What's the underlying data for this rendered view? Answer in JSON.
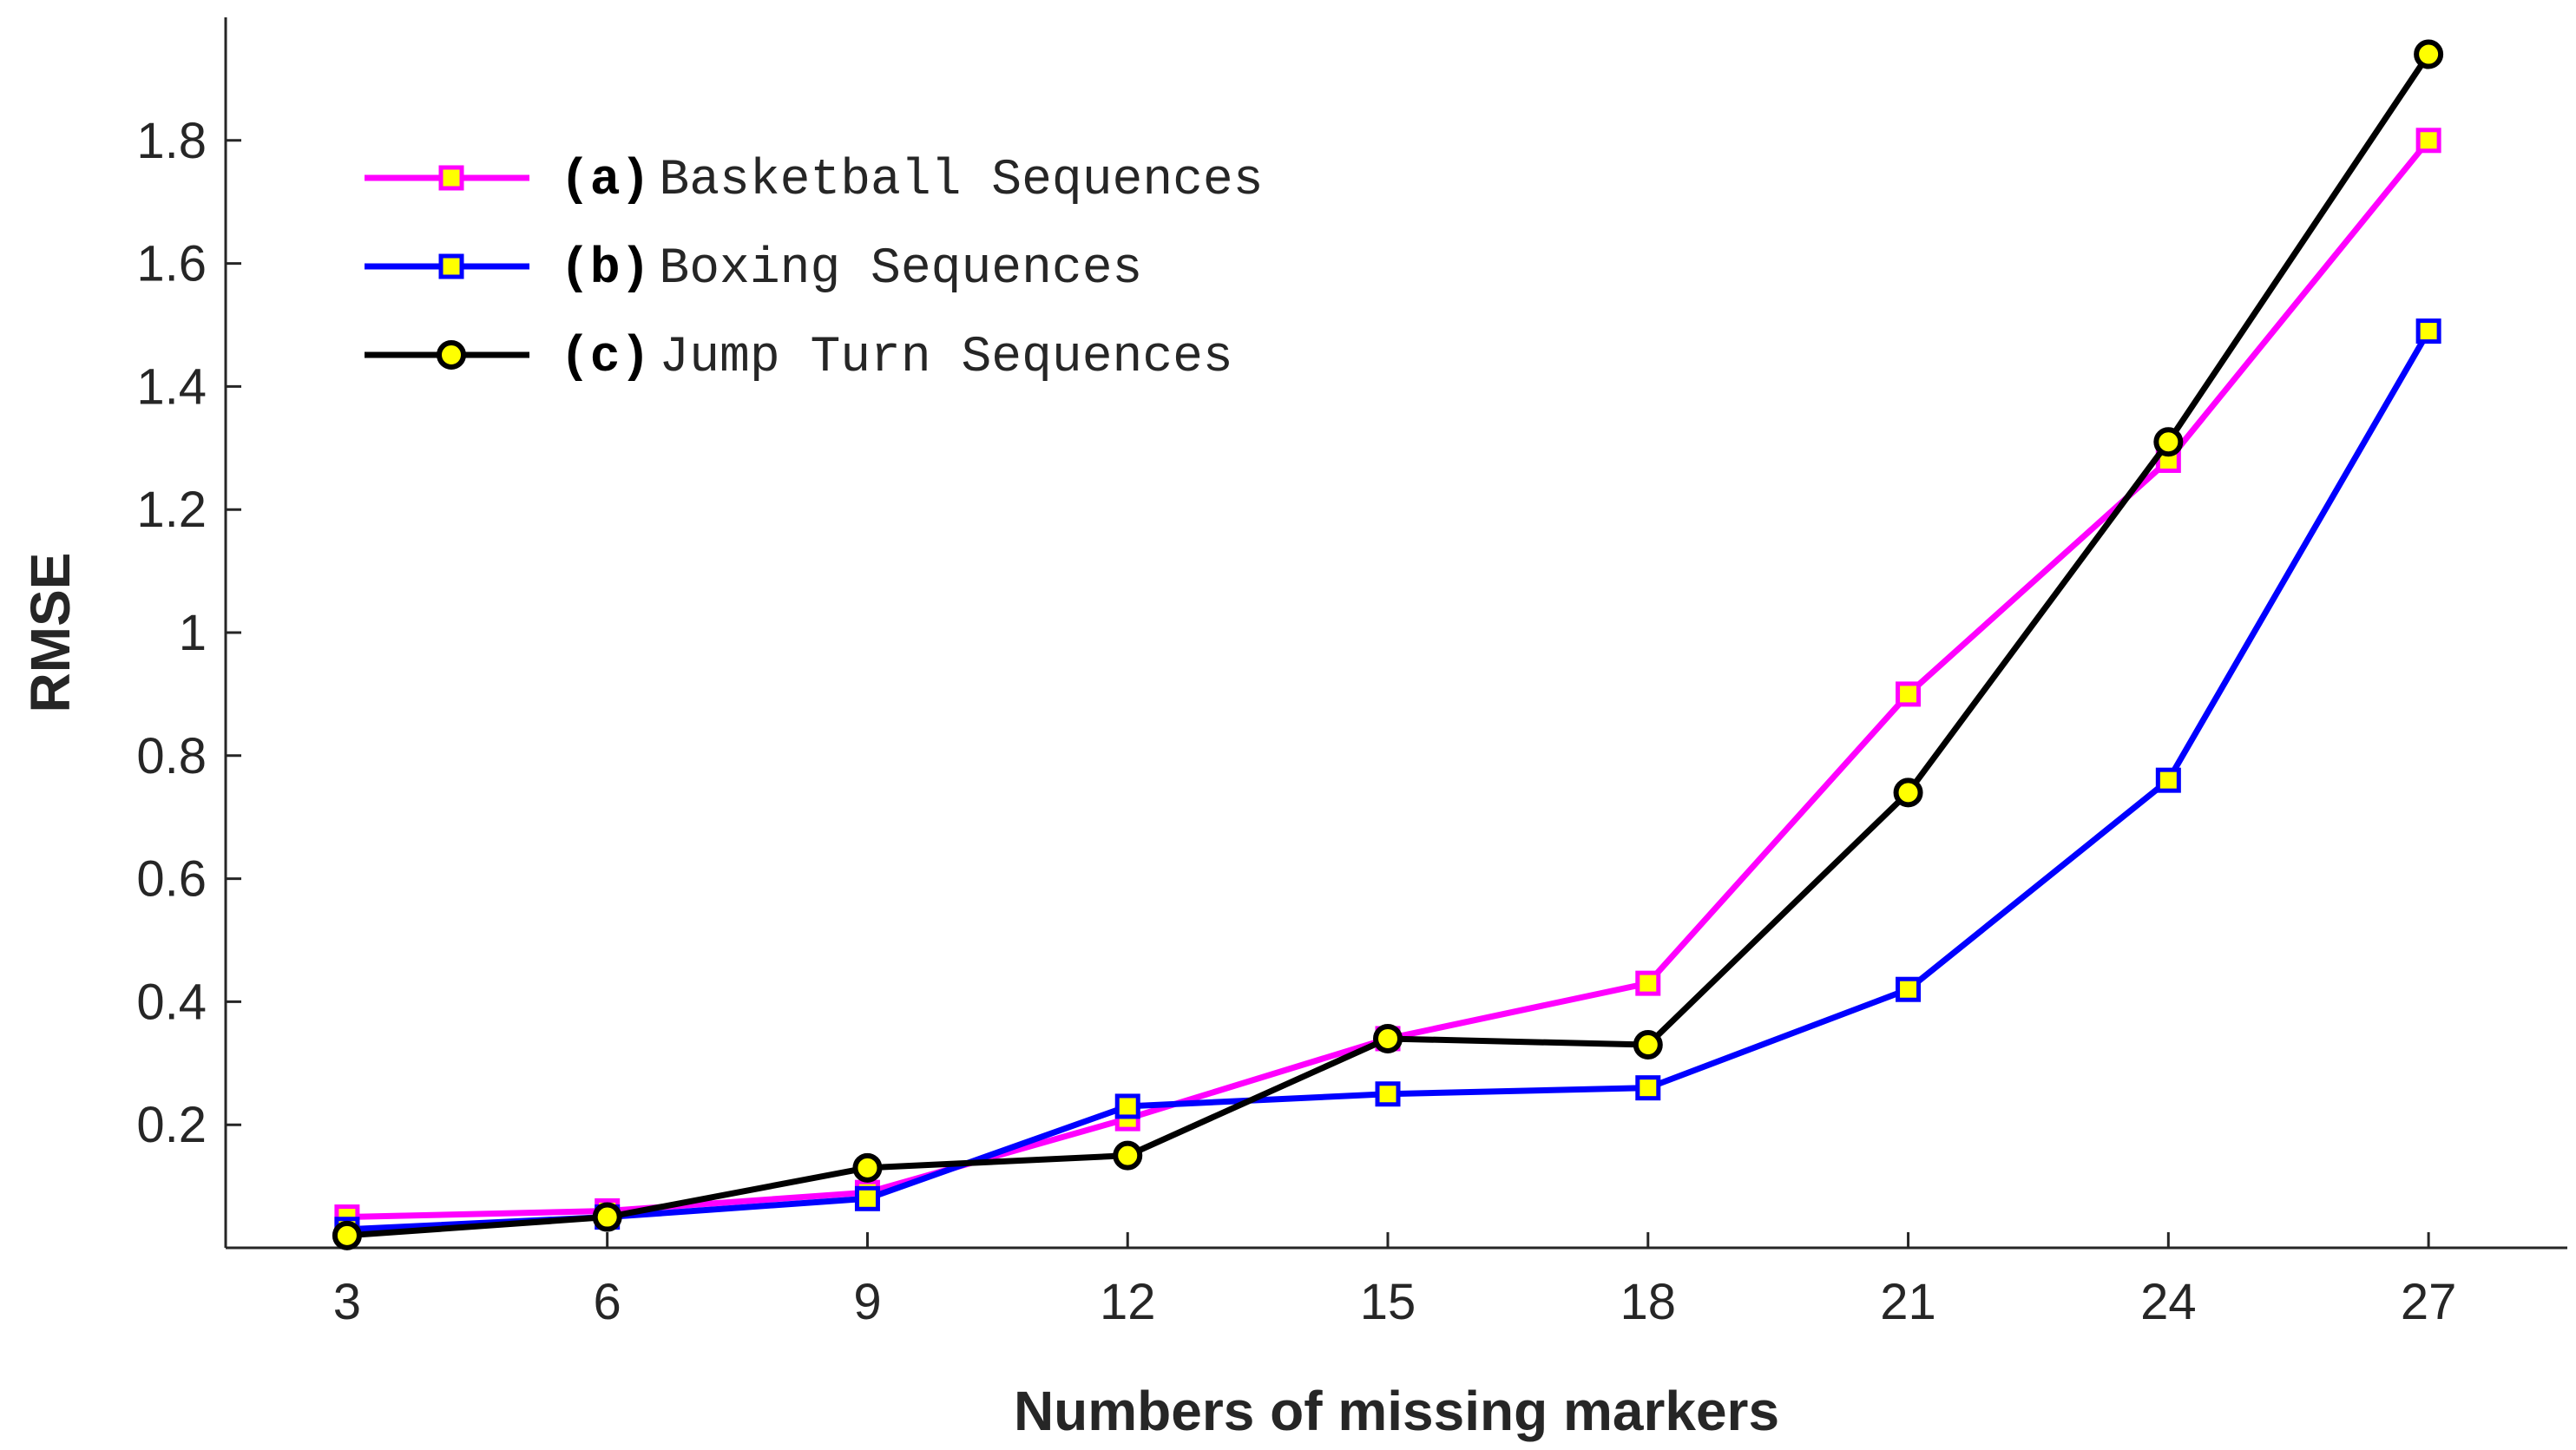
{
  "chart_data": {
    "type": "line",
    "xlabel": "Numbers of missing markers",
    "ylabel": "RMSE",
    "x": [
      3,
      6,
      9,
      12,
      15,
      18,
      21,
      24,
      27
    ],
    "xticks": [
      "3",
      "6",
      "9",
      "12",
      "15",
      "18",
      "21",
      "24",
      "27"
    ],
    "yticks": [
      "0.2",
      "0.4",
      "0.6",
      "0.8",
      "1",
      "1.2",
      "1.4",
      "1.6",
      "1.8"
    ],
    "xlim": [
      1.6,
      28.6
    ],
    "ylim": [
      0,
      2.0
    ],
    "grid": false,
    "legend_position": "top-left",
    "series": [
      {
        "prefix": "(a)",
        "name": "Basketball Sequences",
        "color": "#ff00ff",
        "marker": "square",
        "marker_fill": "#ffff00",
        "values": [
          0.05,
          0.06,
          0.09,
          0.21,
          0.34,
          0.43,
          0.9,
          1.28,
          1.8
        ]
      },
      {
        "prefix": "(b)",
        "name": "Boxing Sequences",
        "color": "#0000ff",
        "marker": "square",
        "marker_fill": "#ffff00",
        "values": [
          0.03,
          0.05,
          0.08,
          0.23,
          0.25,
          0.26,
          0.42,
          0.76,
          1.49
        ]
      },
      {
        "prefix": "(c)",
        "name": "Jump Turn Sequences",
        "color": "#000000",
        "marker": "circle",
        "marker_fill": "#ffff00",
        "values": [
          0.02,
          0.05,
          0.13,
          0.15,
          0.34,
          0.33,
          0.74,
          1.31,
          1.94
        ]
      }
    ]
  }
}
